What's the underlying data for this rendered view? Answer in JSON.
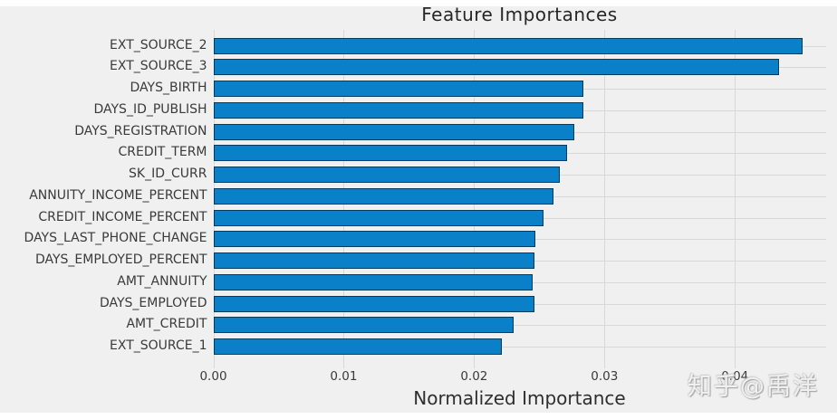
{
  "chart_data": {
    "type": "bar",
    "orientation": "horizontal",
    "title": "Feature Importances",
    "xlabel": "Normalized Importance",
    "ylabel": "",
    "categories": [
      "EXT_SOURCE_2",
      "EXT_SOURCE_3",
      "DAYS_BIRTH",
      "DAYS_ID_PUBLISH",
      "DAYS_REGISTRATION",
      "CREDIT_TERM",
      "SK_ID_CURR",
      "ANNUITY_INCOME_PERCENT",
      "CREDIT_INCOME_PERCENT",
      "DAYS_LAST_PHONE_CHANGE",
      "DAYS_EMPLOYED_PERCENT",
      "AMT_ANNUITY",
      "DAYS_EMPLOYED",
      "AMT_CREDIT",
      "EXT_SOURCE_1"
    ],
    "values": [
      0.0452,
      0.0434,
      0.0284,
      0.0284,
      0.0277,
      0.0271,
      0.0266,
      0.0261,
      0.0253,
      0.0247,
      0.0246,
      0.0245,
      0.0246,
      0.023,
      0.0221
    ],
    "xlim": [
      0,
      0.047
    ],
    "xticks": [
      0.0,
      0.01,
      0.02,
      0.03,
      0.04
    ],
    "xtick_labels": [
      "0.00",
      "0.01",
      "0.02",
      "0.03",
      "0.04"
    ],
    "grid": true,
    "legend": false,
    "style": {
      "figure_background": "#f0f0f0",
      "bar_color": "#0a80c8",
      "bar_edge_color": "#000000",
      "grid_color": "#d8d8d8",
      "text_color": "#3a3a3a"
    }
  },
  "watermark": {
    "text": "知乎@禹洋"
  }
}
